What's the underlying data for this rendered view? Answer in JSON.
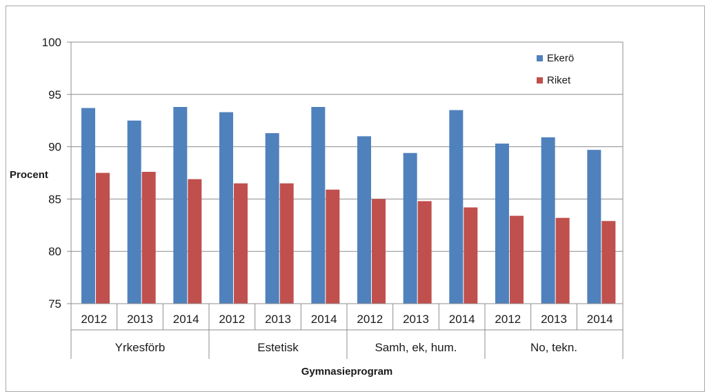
{
  "chart_data": {
    "type": "bar",
    "groups": [
      {
        "label": "Yrkesförb",
        "years": [
          "2012",
          "2013",
          "2014"
        ]
      },
      {
        "label": "Estetisk",
        "years": [
          "2012",
          "2013",
          "2014"
        ]
      },
      {
        "label": "Samh, ek, hum.",
        "years": [
          "2012",
          "2013",
          "2014"
        ]
      },
      {
        "label": "No, tekn.",
        "years": [
          "2012",
          "2013",
          "2014"
        ]
      }
    ],
    "categories": [
      "2012",
      "2013",
      "2014",
      "2012",
      "2013",
      "2014",
      "2012",
      "2013",
      "2014",
      "2012",
      "2013",
      "2014"
    ],
    "series": [
      {
        "name": "Ekerö",
        "color": "#4f81bd",
        "values": [
          93.7,
          92.5,
          93.8,
          93.3,
          91.3,
          93.8,
          91.0,
          89.4,
          93.5,
          90.3,
          90.9,
          89.7
        ]
      },
      {
        "name": "Riket",
        "color": "#c0504d",
        "values": [
          87.5,
          87.6,
          86.9,
          86.5,
          86.5,
          85.9,
          85.0,
          84.8,
          84.2,
          83.4,
          83.2,
          82.9
        ]
      }
    ],
    "ylim": [
      75,
      100
    ],
    "yticks": [
      75,
      80,
      85,
      90,
      95,
      100
    ],
    "xlabel": "Gymnasieprogram",
    "ylabel": "Procent",
    "grid": true,
    "legend": "top-right"
  }
}
